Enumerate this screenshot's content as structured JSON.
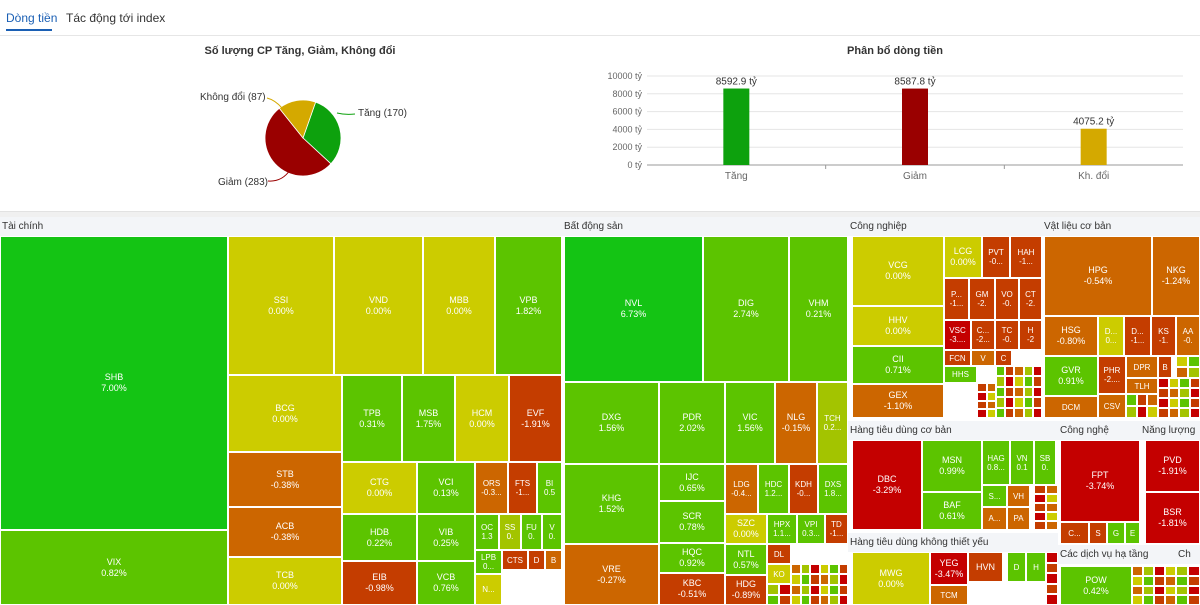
{
  "tabs": [
    {
      "label": "Dòng tiền",
      "active": true
    },
    {
      "label": "Tác động tới index",
      "active": false
    }
  ],
  "colors": {
    "up": "#0da10d",
    "down": "#9a0000",
    "flat": "#d4a900",
    "tile_strong_up": "#14c414",
    "tile_up": "#5cc400",
    "tile_mild_up": "#a3c400",
    "tile_flat": "#cccc00",
    "tile_mild_down": "#cc6600",
    "tile_down": "#c43d00",
    "tile_strong_down": "#c40000"
  },
  "pie": {
    "title": "Số lượng CP Tăng, Giảm, Không đổi",
    "labels": {
      "up": "Tăng (170)",
      "down": "Giảm (283)",
      "flat": "Không đổi (87)"
    }
  },
  "bar": {
    "title": "Phân bổ dòng tiền",
    "y_ticks": [
      "10000 tỷ",
      "8000 tỷ",
      "6000 tỷ",
      "4000 tỷ",
      "2000 tỷ",
      "0 tỷ"
    ],
    "data_labels": [
      "8592.9 tỷ",
      "8587.8 tỷ",
      "4075.2 tỷ"
    ]
  },
  "chart_data": [
    {
      "type": "pie",
      "title": "Số lượng CP Tăng, Giảm, Không đổi",
      "categories": [
        "Tăng",
        "Giảm",
        "Không đổi"
      ],
      "values": [
        170,
        283,
        87
      ],
      "colors": [
        "#0da10d",
        "#9a0000",
        "#d4a900"
      ]
    },
    {
      "type": "bar",
      "title": "Phân bổ dòng tiền",
      "categories": [
        "Tăng",
        "Giảm",
        "Kh. đổi"
      ],
      "values": [
        8592.9,
        8587.8,
        4075.2
      ],
      "ylim": [
        0,
        10000
      ],
      "colors": [
        "#0da10d",
        "#9a0000",
        "#d4a900"
      ]
    }
  ],
  "treemap": {
    "sectors": {
      "taichinh": "Tài chính",
      "bds": "Bất động sản",
      "congnghiep": "Công nghiệp",
      "vatlieu": "Vật liệu cơ bản",
      "tieudungcoban": "Hàng tiêu dùng cơ bản",
      "congnghe": "Công nghệ",
      "nangluong": "Năng lượng",
      "tieudungktk": "Hàng tiêu dùng không thiết yếu",
      "dichvuhatang": "Các dịch vụ hạ tầng",
      "ch": "Ch"
    },
    "tiles": {
      "shb": {
        "sym": "SHB",
        "pct": "7.00%"
      },
      "vix": {
        "sym": "VIX",
        "pct": "0.82%"
      },
      "ssi": {
        "sym": "SSI",
        "pct": "0.00%"
      },
      "vnd": {
        "sym": "VND",
        "pct": "0.00%"
      },
      "mbb": {
        "sym": "MBB",
        "pct": "0.00%"
      },
      "vpb": {
        "sym": "VPB",
        "pct": "1.82%"
      },
      "bcg": {
        "sym": "BCG",
        "pct": "0.00%"
      },
      "stb": {
        "sym": "STB",
        "pct": "-0.38%"
      },
      "acb": {
        "sym": "ACB",
        "pct": "-0.38%"
      },
      "tcb": {
        "sym": "TCB",
        "pct": "0.00%"
      },
      "tpb": {
        "sym": "TPB",
        "pct": "0.31%"
      },
      "msb": {
        "sym": "MSB",
        "pct": "1.75%"
      },
      "hcm": {
        "sym": "HCM",
        "pct": "0.00%"
      },
      "evf": {
        "sym": "EVF",
        "pct": "-1.91%"
      },
      "ctg": {
        "sym": "CTG",
        "pct": "0.00%"
      },
      "vci": {
        "sym": "VCI",
        "pct": "0.13%"
      },
      "ors": {
        "sym": "ORS",
        "pct": "-0.3..."
      },
      "fts": {
        "sym": "FTS",
        "pct": "-1..."
      },
      "bi": {
        "sym": "BI",
        "pct": "0.5"
      },
      "hdb": {
        "sym": "HDB",
        "pct": "0.22%"
      },
      "vib": {
        "sym": "VIB",
        "pct": "0.25%"
      },
      "oc": {
        "sym": "OC",
        "pct": "1.3"
      },
      "ss": {
        "sym": "SS",
        "pct": "0."
      },
      "fu": {
        "sym": "FU",
        "pct": "0."
      },
      "v": {
        "sym": "V",
        "pct": "0."
      },
      "eib": {
        "sym": "EIB",
        "pct": "-0.98%"
      },
      "vcb": {
        "sym": "VCB",
        "pct": "0.76%"
      },
      "lpb": {
        "sym": "LPB",
        "pct": "0..."
      },
      "cts": {
        "sym": "CTS",
        "pct": ""
      },
      "d1": {
        "sym": "D",
        "pct": ""
      },
      "b1": {
        "sym": "B",
        "pct": ""
      },
      "n1": {
        "sym": "N...",
        "pct": ""
      },
      "nvl": {
        "sym": "NVL",
        "pct": "6.73%"
      },
      "dig": {
        "sym": "DIG",
        "pct": "2.74%"
      },
      "vhm": {
        "sym": "VHM",
        "pct": "0.21%"
      },
      "dxg": {
        "sym": "DXG",
        "pct": "1.56%"
      },
      "pdr": {
        "sym": "PDR",
        "pct": "2.02%"
      },
      "vic": {
        "sym": "VIC",
        "pct": "1.56%"
      },
      "nlg": {
        "sym": "NLG",
        "pct": "-0.15%"
      },
      "tch": {
        "sym": "TCH",
        "pct": "0.2..."
      },
      "khg": {
        "sym": "KHG",
        "pct": "1.52%"
      },
      "ijc": {
        "sym": "IJC",
        "pct": "0.65%"
      },
      "ldg": {
        "sym": "LDG",
        "pct": "-0.4..."
      },
      "hdc": {
        "sym": "HDC",
        "pct": "1.2..."
      },
      "kdh": {
        "sym": "KDH",
        "pct": "-0..."
      },
      "dxs": {
        "sym": "DXS",
        "pct": "1.8..."
      },
      "scr": {
        "sym": "SCR",
        "pct": "0.78%"
      },
      "szc": {
        "sym": "SZC",
        "pct": "0.00%"
      },
      "hpx": {
        "sym": "HPX",
        "pct": "1.1..."
      },
      "vpi": {
        "sym": "VPI",
        "pct": "0.3..."
      },
      "td": {
        "sym": "TD",
        "pct": "-1..."
      },
      "hqc": {
        "sym": "HQC",
        "pct": "0.92%"
      },
      "ntl": {
        "sym": "NTL",
        "pct": "0.57%"
      },
      "dl": {
        "sym": "DL",
        "pct": ""
      },
      "vre": {
        "sym": "VRE",
        "pct": "-0.27%"
      },
      "kbc": {
        "sym": "KBC",
        "pct": "-0.51%"
      },
      "hdg": {
        "sym": "HDG",
        "pct": "-0.89%"
      },
      "ko": {
        "sym": "KO",
        "pct": ""
      },
      "vcg": {
        "sym": "VCG",
        "pct": "0.00%"
      },
      "lcg": {
        "sym": "LCG",
        "pct": "0.00%"
      },
      "pvt": {
        "sym": "PVT",
        "pct": "-0..."
      },
      "hah": {
        "sym": "HAH",
        "pct": "-1..."
      },
      "p1": {
        "sym": "P...",
        "pct": "-1..."
      },
      "gm": {
        "sym": "GM",
        "pct": "-2."
      },
      "vo": {
        "sym": "VO",
        "pct": "-0."
      },
      "ct": {
        "sym": "CT",
        "pct": "-2."
      },
      "hhv": {
        "sym": "HHV",
        "pct": "0.00%"
      },
      "vsc": {
        "sym": "VSC",
        "pct": "-3...."
      },
      "c1": {
        "sym": "C...",
        "pct": "-2..."
      },
      "tc": {
        "sym": "TC",
        "pct": "-0."
      },
      "h1": {
        "sym": "H",
        "pct": "-2"
      },
      "fcn": {
        "sym": "FCN",
        "pct": ""
      },
      "v2": {
        "sym": "V",
        "pct": ""
      },
      "c2": {
        "sym": "C",
        "pct": ""
      },
      "cii": {
        "sym": "CII",
        "pct": "0.71%"
      },
      "hhs": {
        "sym": "HHS",
        "pct": ""
      },
      "gex": {
        "sym": "GEX",
        "pct": "-1.10%"
      },
      "hpg": {
        "sym": "HPG",
        "pct": "-0.54%"
      },
      "nkg": {
        "sym": "NKG",
        "pct": "-1.24%"
      },
      "hsg": {
        "sym": "HSG",
        "pct": "-0.80%"
      },
      "d2": {
        "sym": "D...",
        "pct": "0..."
      },
      "d3": {
        "sym": "D...",
        "pct": "-1..."
      },
      "ks": {
        "sym": "KS",
        "pct": "-1."
      },
      "aa": {
        "sym": "AA",
        "pct": "-0."
      },
      "gvr": {
        "sym": "GVR",
        "pct": "0.91%"
      },
      "phr": {
        "sym": "PHR",
        "pct": "-2...."
      },
      "dpr": {
        "sym": "DPR",
        "pct": ""
      },
      "b2": {
        "sym": "B",
        "pct": ""
      },
      "tlh": {
        "sym": "TLH",
        "pct": ""
      },
      "dcm": {
        "sym": "DCM",
        "pct": ""
      },
      "csv": {
        "sym": "CSV",
        "pct": ""
      },
      "dbc": {
        "sym": "DBC",
        "pct": "-3.29%"
      },
      "msn": {
        "sym": "MSN",
        "pct": "0.99%"
      },
      "hag": {
        "sym": "HAG",
        "pct": "0.8..."
      },
      "vn": {
        "sym": "VN",
        "pct": "0.1"
      },
      "sb": {
        "sym": "SB",
        "pct": "0."
      },
      "s1": {
        "sym": "S...",
        "pct": ""
      },
      "vh": {
        "sym": "VH",
        "pct": ""
      },
      "baf": {
        "sym": "BAF",
        "pct": "0.61%"
      },
      "a1": {
        "sym": "A...",
        "pct": ""
      },
      "pa": {
        "sym": "PA",
        "pct": ""
      },
      "fpt": {
        "sym": "FPT",
        "pct": "-3.74%"
      },
      "c3": {
        "sym": "C...",
        "pct": ""
      },
      "s2": {
        "sym": "S",
        "pct": ""
      },
      "g1": {
        "sym": "G",
        "pct": ""
      },
      "e1": {
        "sym": "E",
        "pct": ""
      },
      "pvd": {
        "sym": "PVD",
        "pct": "-1.91%"
      },
      "bsr": {
        "sym": "BSR",
        "pct": "-1.81%"
      },
      "mwg": {
        "sym": "MWG",
        "pct": "0.00%"
      },
      "yeg": {
        "sym": "YEG",
        "pct": "-3.47%"
      },
      "hvn": {
        "sym": "HVN",
        "pct": ""
      },
      "d4": {
        "sym": "D",
        "pct": ""
      },
      "h2": {
        "sym": "H",
        "pct": ""
      },
      "tcm": {
        "sym": "TCM",
        "pct": ""
      },
      "pow": {
        "sym": "POW",
        "pct": "0.42%"
      }
    }
  }
}
